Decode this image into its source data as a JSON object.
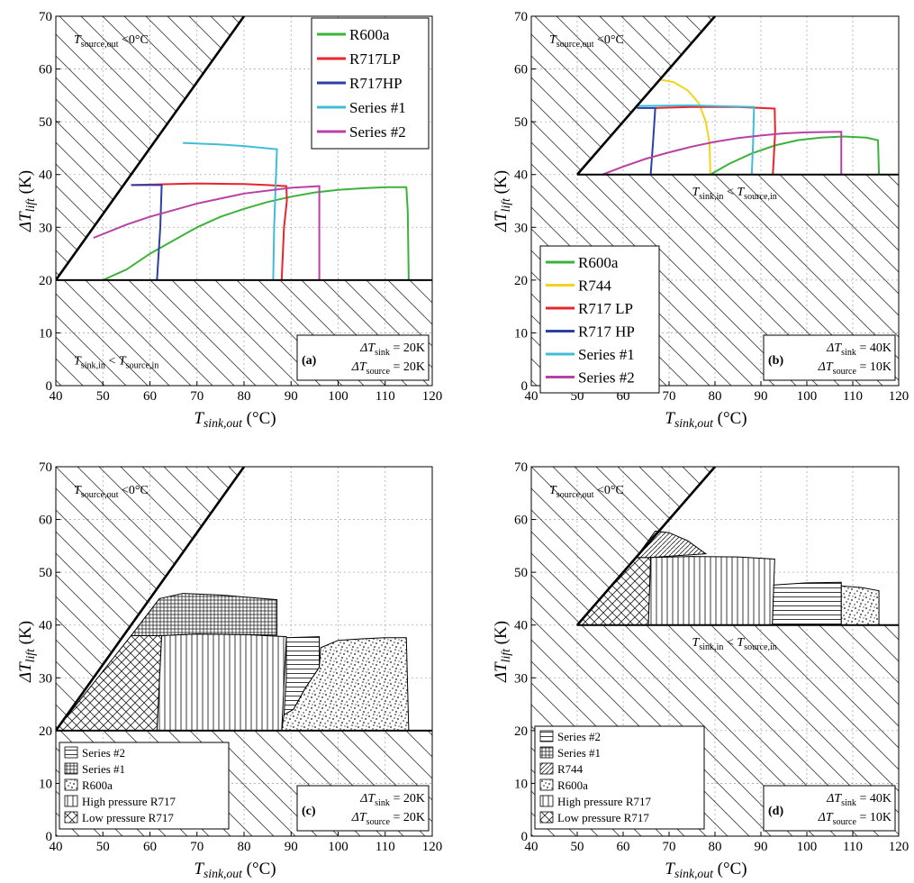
{
  "chart_data": [
    {
      "panel": "(a)",
      "type": "line",
      "xlabel": "T_sink,out (°C)",
      "ylabel": "ΔT_lift (K)",
      "xlim": [
        40,
        120
      ],
      "ylim": [
        0,
        70
      ],
      "xticks": [
        40,
        50,
        60,
        70,
        80,
        90,
        100,
        110,
        120
      ],
      "yticks": [
        0,
        10,
        20,
        30,
        40,
        50,
        60,
        70
      ],
      "grid": true,
      "legend_position": "top-right",
      "region_labels": {
        "top_left": "T_source,out < 0°C",
        "bottom_left": "T_sink,in < T_source,in"
      },
      "annotation": {
        "label": "(a)",
        "line1": "ΔT_sink = 20K",
        "line2": "ΔT_source = 20K"
      },
      "boundary_diagonal": [
        [
          40,
          20
        ],
        [
          80,
          70
        ]
      ],
      "min_lift": 20,
      "series": [
        {
          "name": "R600a",
          "color": "#3bb33b",
          "points": [
            [
              50,
              20
            ],
            [
              55,
              22
            ],
            [
              60,
              25
            ],
            [
              65,
              27.5
            ],
            [
              70,
              30
            ],
            [
              75,
              32
            ],
            [
              80,
              33.5
            ],
            [
              85,
              34.8
            ],
            [
              90,
              35.8
            ],
            [
              95,
              36.6
            ],
            [
              100,
              37.1
            ],
            [
              105,
              37.4
            ],
            [
              110,
              37.6
            ],
            [
              114.5,
              37.6
            ],
            [
              114.8,
              33
            ],
            [
              115,
              20
            ]
          ]
        },
        {
          "name": "R717LP",
          "color": "#e8252a",
          "points": [
            [
              56,
              38
            ],
            [
              60,
              38.1
            ],
            [
              70,
              38.3
            ],
            [
              80,
              38.2
            ],
            [
              85,
              38
            ],
            [
              89,
              37.8
            ],
            [
              89.1,
              35
            ],
            [
              88.5,
              30
            ],
            [
              88,
              20
            ]
          ]
        },
        {
          "name": "R717HP",
          "color": "#2c3fa6",
          "points": [
            [
              56,
              38
            ],
            [
              62.5,
              38
            ],
            [
              62.2,
              30
            ],
            [
              61.5,
              20
            ]
          ]
        },
        {
          "name": "Series #1",
          "color": "#40bcd8",
          "points": [
            [
              67,
              46
            ],
            [
              75,
              45.7
            ],
            [
              80,
              45.4
            ],
            [
              87,
              44.8
            ],
            [
              86.8,
              40
            ],
            [
              86.4,
              30
            ],
            [
              86.2,
              20
            ]
          ]
        },
        {
          "name": "Series #2",
          "color": "#b941a3",
          "points": [
            [
              48,
              28
            ],
            [
              55,
              30.5
            ],
            [
              60,
              32
            ],
            [
              70,
              34.5
            ],
            [
              80,
              36.4
            ],
            [
              90,
              37.5
            ],
            [
              96,
              37.8
            ],
            [
              96,
              30
            ],
            [
              96,
              20
            ]
          ]
        }
      ]
    },
    {
      "panel": "(b)",
      "type": "line",
      "xlabel": "T_sink,out (°C)",
      "ylabel": "ΔT_lift (K)",
      "xlim": [
        40,
        120
      ],
      "ylim": [
        0,
        70
      ],
      "xticks": [
        40,
        50,
        60,
        70,
        80,
        90,
        100,
        110,
        120
      ],
      "yticks": [
        0,
        10,
        20,
        30,
        40,
        50,
        60,
        70
      ],
      "grid": true,
      "legend_position": "bottom-left",
      "region_labels": {
        "top_left": "T_source,out < 0°C",
        "middle": "T_sink,in < T_source,in"
      },
      "annotation": {
        "label": "(b)",
        "line1": "ΔT_sink = 40K",
        "line2": "ΔT_source = 10K"
      },
      "boundary_diagonal": [
        [
          50,
          40
        ],
        [
          80,
          70
        ]
      ],
      "min_lift": 40,
      "series": [
        {
          "name": "R600a",
          "color": "#3bb33b",
          "points": [
            [
              79,
              40
            ],
            [
              83,
              42
            ],
            [
              88,
              44
            ],
            [
              93,
              45.5
            ],
            [
              98,
              46.5
            ],
            [
              103,
              47
            ],
            [
              108,
              47.2
            ],
            [
              113,
              47
            ],
            [
              115.5,
              46.5
            ],
            [
              115.7,
              40
            ]
          ]
        },
        {
          "name": "R744",
          "color": "#f2d41c",
          "points": [
            [
              68,
              58
            ],
            [
              71,
              57.5
            ],
            [
              74,
              56
            ],
            [
              76.5,
              53.5
            ],
            [
              78,
              50
            ],
            [
              78.8,
              46
            ],
            [
              79,
              40
            ]
          ]
        },
        {
          "name": "R717 LP",
          "color": "#e8252a",
          "points": [
            [
              67,
              52.6
            ],
            [
              75,
              52.8
            ],
            [
              85,
              52.8
            ],
            [
              93,
              52.5
            ],
            [
              93.1,
              48
            ],
            [
              92.6,
              40
            ]
          ]
        },
        {
          "name": "R717 HP",
          "color": "#2c3fa6",
          "points": [
            [
              63,
              52.6
            ],
            [
              67,
              52.6
            ],
            [
              66.5,
              46
            ],
            [
              66,
              40
            ]
          ]
        },
        {
          "name": "Series #1",
          "color": "#40bcd8",
          "points": [
            [
              63,
              53
            ],
            [
              75,
              53.1
            ],
            [
              88.5,
              52.8
            ],
            [
              88.3,
              46
            ],
            [
              88,
              40
            ]
          ]
        },
        {
          "name": "Series #2",
          "color": "#b941a3",
          "points": [
            [
              55.5,
              40
            ],
            [
              60,
              41.5
            ],
            [
              65,
              43
            ],
            [
              70,
              44.2
            ],
            [
              75,
              45.3
            ],
            [
              80,
              46.2
            ],
            [
              85,
              46.9
            ],
            [
              90,
              47.4
            ],
            [
              95,
              47.8
            ],
            [
              100,
              48
            ],
            [
              107.5,
              48.1
            ],
            [
              107.5,
              44
            ],
            [
              107.5,
              40
            ]
          ]
        }
      ]
    },
    {
      "panel": "(c)",
      "type": "area",
      "xlabel": "T_sink,out (°C)",
      "ylabel": "ΔT_lift (K)",
      "xlim": [
        40,
        120
      ],
      "ylim": [
        0,
        70
      ],
      "xticks": [
        40,
        50,
        60,
        70,
        80,
        90,
        100,
        110,
        120
      ],
      "yticks": [
        0,
        10,
        20,
        30,
        40,
        50,
        60,
        70
      ],
      "grid": true,
      "legend_position": "bottom-left",
      "region_labels": {
        "top_left": "T_source,out < 0°C"
      },
      "annotation": {
        "label": "(c)",
        "line1": "ΔT_sink = 20K",
        "line2": "ΔT_source = 20K"
      },
      "boundary_diagonal": [
        [
          40,
          20
        ],
        [
          80,
          70
        ]
      ],
      "min_lift": 20,
      "legend": [
        "Series #2",
        "Series #1",
        "R600a",
        "High pressure R717",
        "Low pressure R717"
      ],
      "regions": [
        {
          "name": "Low pressure R717",
          "pattern": "cross",
          "polygon": [
            [
              40,
              20
            ],
            [
              56,
              38
            ],
            [
              62.5,
              38
            ],
            [
              61.5,
              20
            ]
          ]
        },
        {
          "name": "High pressure R717",
          "pattern": "vertical",
          "polygon": [
            [
              62.5,
              38
            ],
            [
              70,
              38.3
            ],
            [
              80,
              38.2
            ],
            [
              89,
              37.8
            ],
            [
              88,
              20
            ],
            [
              61.5,
              20
            ]
          ]
        },
        {
          "name": "Series #1",
          "pattern": "grid",
          "polygon": [
            [
              56,
              38
            ],
            [
              62,
              45
            ],
            [
              67,
              46
            ],
            [
              75,
              45.7
            ],
            [
              87,
              44.8
            ],
            [
              87,
              38.1
            ],
            [
              70,
              38.3
            ],
            [
              62.5,
              38
            ]
          ]
        },
        {
          "name": "Series #2",
          "pattern": "horizontal",
          "polygon": [
            [
              89,
              37.6
            ],
            [
              96,
              37.8
            ],
            [
              96,
              32
            ],
            [
              93,
              28
            ],
            [
              90.5,
              24
            ],
            [
              88.5,
              23
            ],
            [
              89,
              30
            ]
          ]
        },
        {
          "name": "R600a",
          "pattern": "dots",
          "polygon": [
            [
              88.5,
              23
            ],
            [
              90.5,
              24
            ],
            [
              93,
              28
            ],
            [
              96,
              32
            ],
            [
              96.3,
              35.7
            ],
            [
              100,
              37.1
            ],
            [
              105,
              37.4
            ],
            [
              110,
              37.6
            ],
            [
              114.5,
              37.6
            ],
            [
              115,
              20
            ],
            [
              88,
              20
            ]
          ]
        }
      ]
    },
    {
      "panel": "(d)",
      "type": "area",
      "xlabel": "T_sink,out (°C)",
      "ylabel": "ΔT_lift (K)",
      "xlim": [
        40,
        120
      ],
      "ylim": [
        0,
        70
      ],
      "xticks": [
        40,
        50,
        60,
        70,
        80,
        90,
        100,
        110,
        120
      ],
      "yticks": [
        0,
        10,
        20,
        30,
        40,
        50,
        60,
        70
      ],
      "grid": true,
      "legend_position": "bottom-left",
      "region_labels": {
        "top_left": "T_source,out < 0°C",
        "middle": "T_sink,in < T_source,in"
      },
      "annotation": {
        "label": "(d)",
        "line1": "ΔT_sink = 40K",
        "line2": "ΔT_source = 10K"
      },
      "boundary_diagonal": [
        [
          50,
          40
        ],
        [
          80,
          70
        ]
      ],
      "min_lift": 40,
      "legend": [
        "Series #2",
        "Series #1",
        "R744",
        "R600a",
        "High pressure R717",
        "Low pressure R717"
      ],
      "regions": [
        {
          "name": "Low pressure R717",
          "pattern": "cross",
          "polygon": [
            [
              50,
              40
            ],
            [
              62.8,
              52.8
            ],
            [
              66,
              52.8
            ],
            [
              65.5,
              40
            ]
          ]
        },
        {
          "name": "R744",
          "pattern": "diagonal",
          "polygon": [
            [
              62.8,
              52.8
            ],
            [
              67,
              57.8
            ],
            [
              70,
              57.5
            ],
            [
              74,
              56
            ],
            [
              78,
              53.5
            ],
            [
              66,
              52.8
            ]
          ]
        },
        {
          "name": "High pressure R717",
          "pattern": "vertical",
          "polygon": [
            [
              66,
              52.8
            ],
            [
              75,
              53
            ],
            [
              85,
              52.9
            ],
            [
              93,
              52.5
            ],
            [
              92.5,
              40
            ],
            [
              65.5,
              40
            ]
          ]
        },
        {
          "name": "Series #2",
          "pattern": "horizontal",
          "polygon": [
            [
              92.8,
              47.6
            ],
            [
              100,
              48
            ],
            [
              107.5,
              48.1
            ],
            [
              107.5,
              40
            ],
            [
              92.5,
              40
            ]
          ]
        },
        {
          "name": "R600a",
          "pattern": "dots",
          "polygon": [
            [
              107.5,
              47.4
            ],
            [
              112,
              47.1
            ],
            [
              115.7,
              46.5
            ],
            [
              115.7,
              40
            ],
            [
              107.5,
              40
            ]
          ]
        }
      ]
    }
  ],
  "texts": {
    "source_out": "<0°C",
    "sink_in_lt": "<",
    "delta_t_sink": "= 20K",
    "delta_t_source": "= 20K"
  }
}
